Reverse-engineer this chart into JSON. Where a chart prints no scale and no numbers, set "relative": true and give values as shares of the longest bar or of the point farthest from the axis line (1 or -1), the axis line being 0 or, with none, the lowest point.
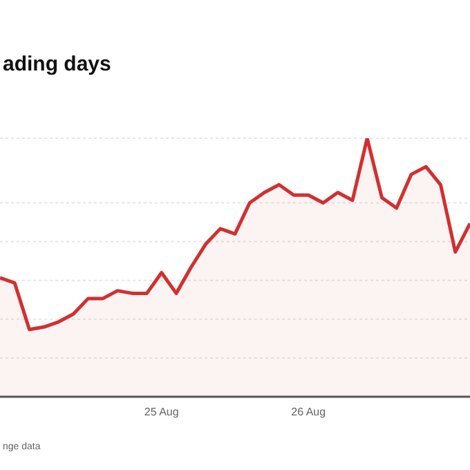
{
  "chart_data": {
    "type": "area",
    "title": "ading days",
    "annotations": [
      "nge data"
    ],
    "relative": true,
    "grid": "y",
    "categories": [
      null,
      null,
      null,
      null,
      null,
      null,
      null,
      null,
      null,
      null,
      null,
      "25 Aug",
      null,
      null,
      null,
      null,
      null,
      null,
      null,
      null,
      null,
      "26 Aug",
      null,
      null,
      null,
      null,
      null,
      null,
      null,
      null,
      null,
      null,
      null
    ],
    "series": [
      {
        "color": "#d32f2f",
        "values": [
          0.46,
          0.44,
          0.26,
          0.27,
          0.29,
          0.32,
          0.38,
          0.38,
          0.41,
          0.4,
          0.4,
          0.48,
          0.4,
          0.5,
          0.59,
          0.65,
          0.63,
          0.75,
          0.79,
          0.82,
          0.78,
          0.78,
          0.75,
          0.79,
          0.76,
          1,
          0.77,
          0.73,
          0.86,
          0.89,
          0.82,
          0.56,
          0.67
        ]
      }
    ]
  }
}
